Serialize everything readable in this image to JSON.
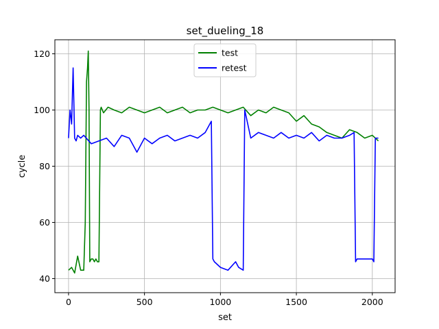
{
  "chart_data": {
    "type": "line",
    "title": "set_dueling_18",
    "xlabel": "set",
    "ylabel": "cycle",
    "xlim": [
      -90,
      2150
    ],
    "ylim": [
      35,
      125
    ],
    "xticks": [
      0,
      500,
      1000,
      1500,
      2000
    ],
    "yticks": [
      40,
      60,
      80,
      100,
      120
    ],
    "grid": true,
    "legend_position": "top-center",
    "series": [
      {
        "name": "test",
        "color": "#008000",
        "x": [
          0,
          20,
          40,
          60,
          80,
          100,
          110,
          118,
          125,
          130,
          135,
          140,
          150,
          160,
          170,
          180,
          190,
          200,
          210,
          215,
          230,
          260,
          300,
          350,
          400,
          450,
          500,
          550,
          600,
          650,
          700,
          750,
          800,
          850,
          900,
          950,
          1000,
          1050,
          1100,
          1150,
          1200,
          1250,
          1300,
          1350,
          1400,
          1450,
          1500,
          1550,
          1600,
          1650,
          1700,
          1750,
          1800,
          1850,
          1900,
          1950,
          2000,
          2040
        ],
        "values": [
          43,
          44,
          42,
          48,
          43,
          43,
          60,
          110,
          115,
          121,
          100,
          46,
          47,
          47,
          46,
          47,
          46,
          46,
          100,
          101,
          99,
          101,
          100,
          99,
          101,
          100,
          99,
          100,
          101,
          99,
          100,
          101,
          99,
          100,
          100,
          101,
          100,
          99,
          100,
          101,
          98,
          100,
          99,
          101,
          100,
          99,
          96,
          98,
          95,
          94,
          92,
          91,
          90,
          93,
          92,
          90,
          91,
          89
        ]
      },
      {
        "name": "retest",
        "color": "#0000ff",
        "x": [
          0,
          10,
          20,
          30,
          40,
          50,
          60,
          80,
          100,
          150,
          200,
          250,
          300,
          350,
          400,
          450,
          500,
          550,
          600,
          650,
          700,
          750,
          800,
          850,
          900,
          940,
          950,
          960,
          1000,
          1050,
          1100,
          1120,
          1150,
          1160,
          1200,
          1250,
          1300,
          1350,
          1400,
          1450,
          1500,
          1550,
          1600,
          1650,
          1700,
          1750,
          1800,
          1850,
          1880,
          1890,
          1900,
          1950,
          2000,
          2010,
          2020,
          2040
        ],
        "values": [
          90,
          100,
          95,
          115,
          90,
          89,
          91,
          90,
          91,
          88,
          89,
          90,
          87,
          91,
          90,
          85,
          90,
          88,
          90,
          91,
          89,
          90,
          91,
          90,
          92,
          96,
          47,
          46,
          44,
          43,
          46,
          44,
          43,
          100,
          90,
          92,
          91,
          90,
          92,
          90,
          91,
          90,
          92,
          89,
          91,
          90,
          90,
          91,
          92,
          46,
          47,
          47,
          47,
          46,
          90,
          90
        ]
      }
    ]
  }
}
